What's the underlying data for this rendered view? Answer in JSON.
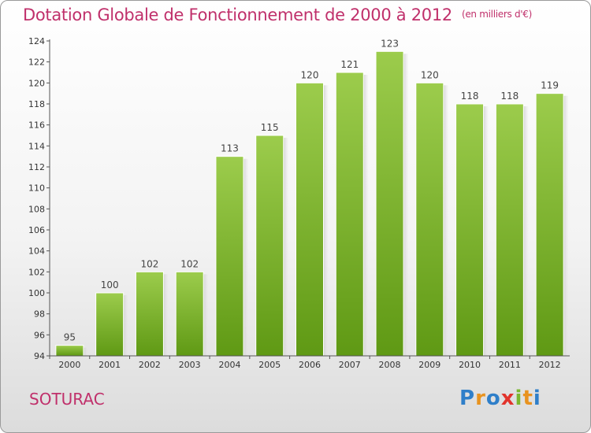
{
  "header": {
    "title": "Dotation Globale de Fonctionnement de 2000 à 2012",
    "unit": "(en milliers d'€)"
  },
  "footer": {
    "place": "SOTURAC",
    "logo": "Proxiti"
  },
  "colors": {
    "title": "#c0306b",
    "bar_light": "#9ccc4c",
    "bar_dark": "#5f9914",
    "logo": [
      "#2f7fc9",
      "#e89320",
      "#2f7fc9",
      "#e2342c",
      "#7cb82f",
      "#e89320",
      "#2f7fc9"
    ]
  },
  "chart_data": {
    "type": "bar",
    "title": "Dotation Globale de Fonctionnement de 2000 à 2012",
    "subtitle": "(en milliers d'€)",
    "categories": [
      "2000",
      "2001",
      "2002",
      "2003",
      "2004",
      "2005",
      "2006",
      "2007",
      "2008",
      "2009",
      "2010",
      "2011",
      "2012"
    ],
    "values": [
      95,
      100,
      102,
      102,
      113,
      115,
      120,
      121,
      123,
      120,
      118,
      118,
      119
    ],
    "ylim": [
      94,
      124
    ],
    "yticks": [
      94,
      96,
      98,
      100,
      102,
      104,
      106,
      108,
      110,
      112,
      114,
      116,
      118,
      120,
      122,
      124
    ],
    "grid": false,
    "data_labels": true
  }
}
